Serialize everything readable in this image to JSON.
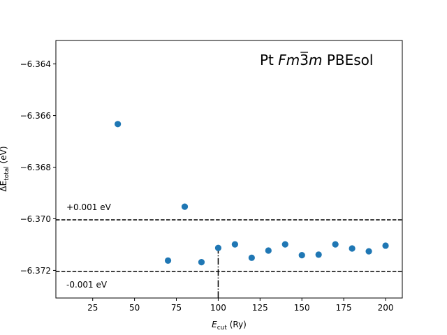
{
  "chart_data": {
    "type": "scatter",
    "title": {
      "prefix": "Pt ",
      "spacegroup_parts": [
        "F",
        "m",
        "3",
        "m"
      ],
      "overlined_part": "3",
      "suffix": " PBEsol"
    },
    "xlabel": {
      "main": "E",
      "sub": "cut",
      "unit": " (Ry)"
    },
    "ylabel": {
      "main": "ΔE",
      "sub": "total",
      "unit": " (eV)"
    },
    "xlim": [
      3,
      210
    ],
    "ylim": [
      -6.37307,
      -6.36309
    ],
    "xticks": [
      25,
      50,
      75,
      100,
      125,
      150,
      175,
      200
    ],
    "yticks": [
      -6.364,
      -6.366,
      -6.368,
      -6.37,
      -6.372
    ],
    "xtick_labels": [
      "25",
      "50",
      "75",
      "100",
      "125",
      "150",
      "175",
      "200"
    ],
    "ytick_labels": [
      "−6.364",
      "−6.366",
      "−6.368",
      "−6.370",
      "−6.372"
    ],
    "marker_color": "#1f77b4",
    "points": [
      {
        "x": 40,
        "y": -6.36633
      },
      {
        "x": 70,
        "y": -6.37162
      },
      {
        "x": 80,
        "y": -6.36953
      },
      {
        "x": 90,
        "y": -6.37168
      },
      {
        "x": 100,
        "y": -6.37113
      },
      {
        "x": 110,
        "y": -6.37099
      },
      {
        "x": 120,
        "y": -6.37151
      },
      {
        "x": 130,
        "y": -6.37123
      },
      {
        "x": 140,
        "y": -6.37099
      },
      {
        "x": 150,
        "y": -6.37141
      },
      {
        "x": 160,
        "y": -6.37139
      },
      {
        "x": 170,
        "y": -6.37099
      },
      {
        "x": 180,
        "y": -6.37115
      },
      {
        "x": 190,
        "y": -6.37126
      },
      {
        "x": 200,
        "y": -6.37104
      }
    ],
    "reference_lines": {
      "upper": {
        "y": -6.37004,
        "label": "+0.001 eV"
      },
      "lower": {
        "y": -6.37204,
        "label": "-0.001 eV"
      },
      "vertical": {
        "x": 100
      }
    },
    "grid": false,
    "legend": "none"
  }
}
